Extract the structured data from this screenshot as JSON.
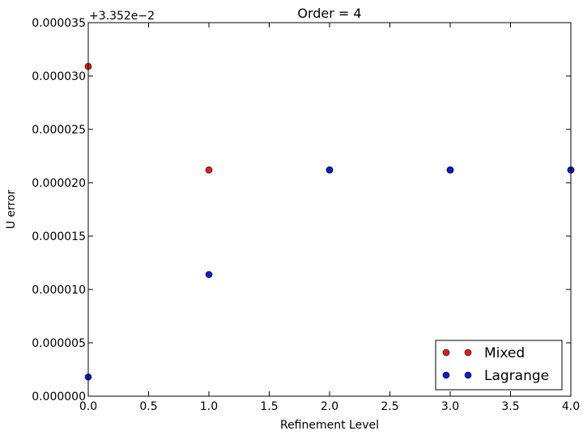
{
  "chart_data": {
    "type": "scatter",
    "title": "Order = 4",
    "xlabel": "Refinement Level",
    "ylabel": "U error",
    "offset_text": "+3.352e−2",
    "xlim": [
      0.0,
      4.0
    ],
    "ylim": [
      0.0,
      3.5e-05
    ],
    "x_ticks": [
      "0.0",
      "0.5",
      "1.0",
      "1.5",
      "2.0",
      "2.5",
      "3.0",
      "3.5",
      "4.0"
    ],
    "y_ticks": [
      "0.000000",
      "0.000005",
      "0.000010",
      "0.000015",
      "0.000020",
      "0.000025",
      "0.000030",
      "0.000035"
    ],
    "legend_position": "lower-right",
    "grid": false,
    "series": [
      {
        "name": "Mixed",
        "color": "#e31a1c",
        "x": [
          0,
          1,
          2,
          3,
          4
        ],
        "y": [
          3.09e-05,
          2.12e-05,
          2.12e-05,
          2.12e-05,
          2.12e-05
        ]
      },
      {
        "name": "Lagrange",
        "color": "#0d1ad8",
        "x": [
          0,
          1,
          2,
          3,
          4
        ],
        "y": [
          1.8e-06,
          1.14e-05,
          2.12e-05,
          2.12e-05,
          2.12e-05
        ]
      }
    ]
  }
}
